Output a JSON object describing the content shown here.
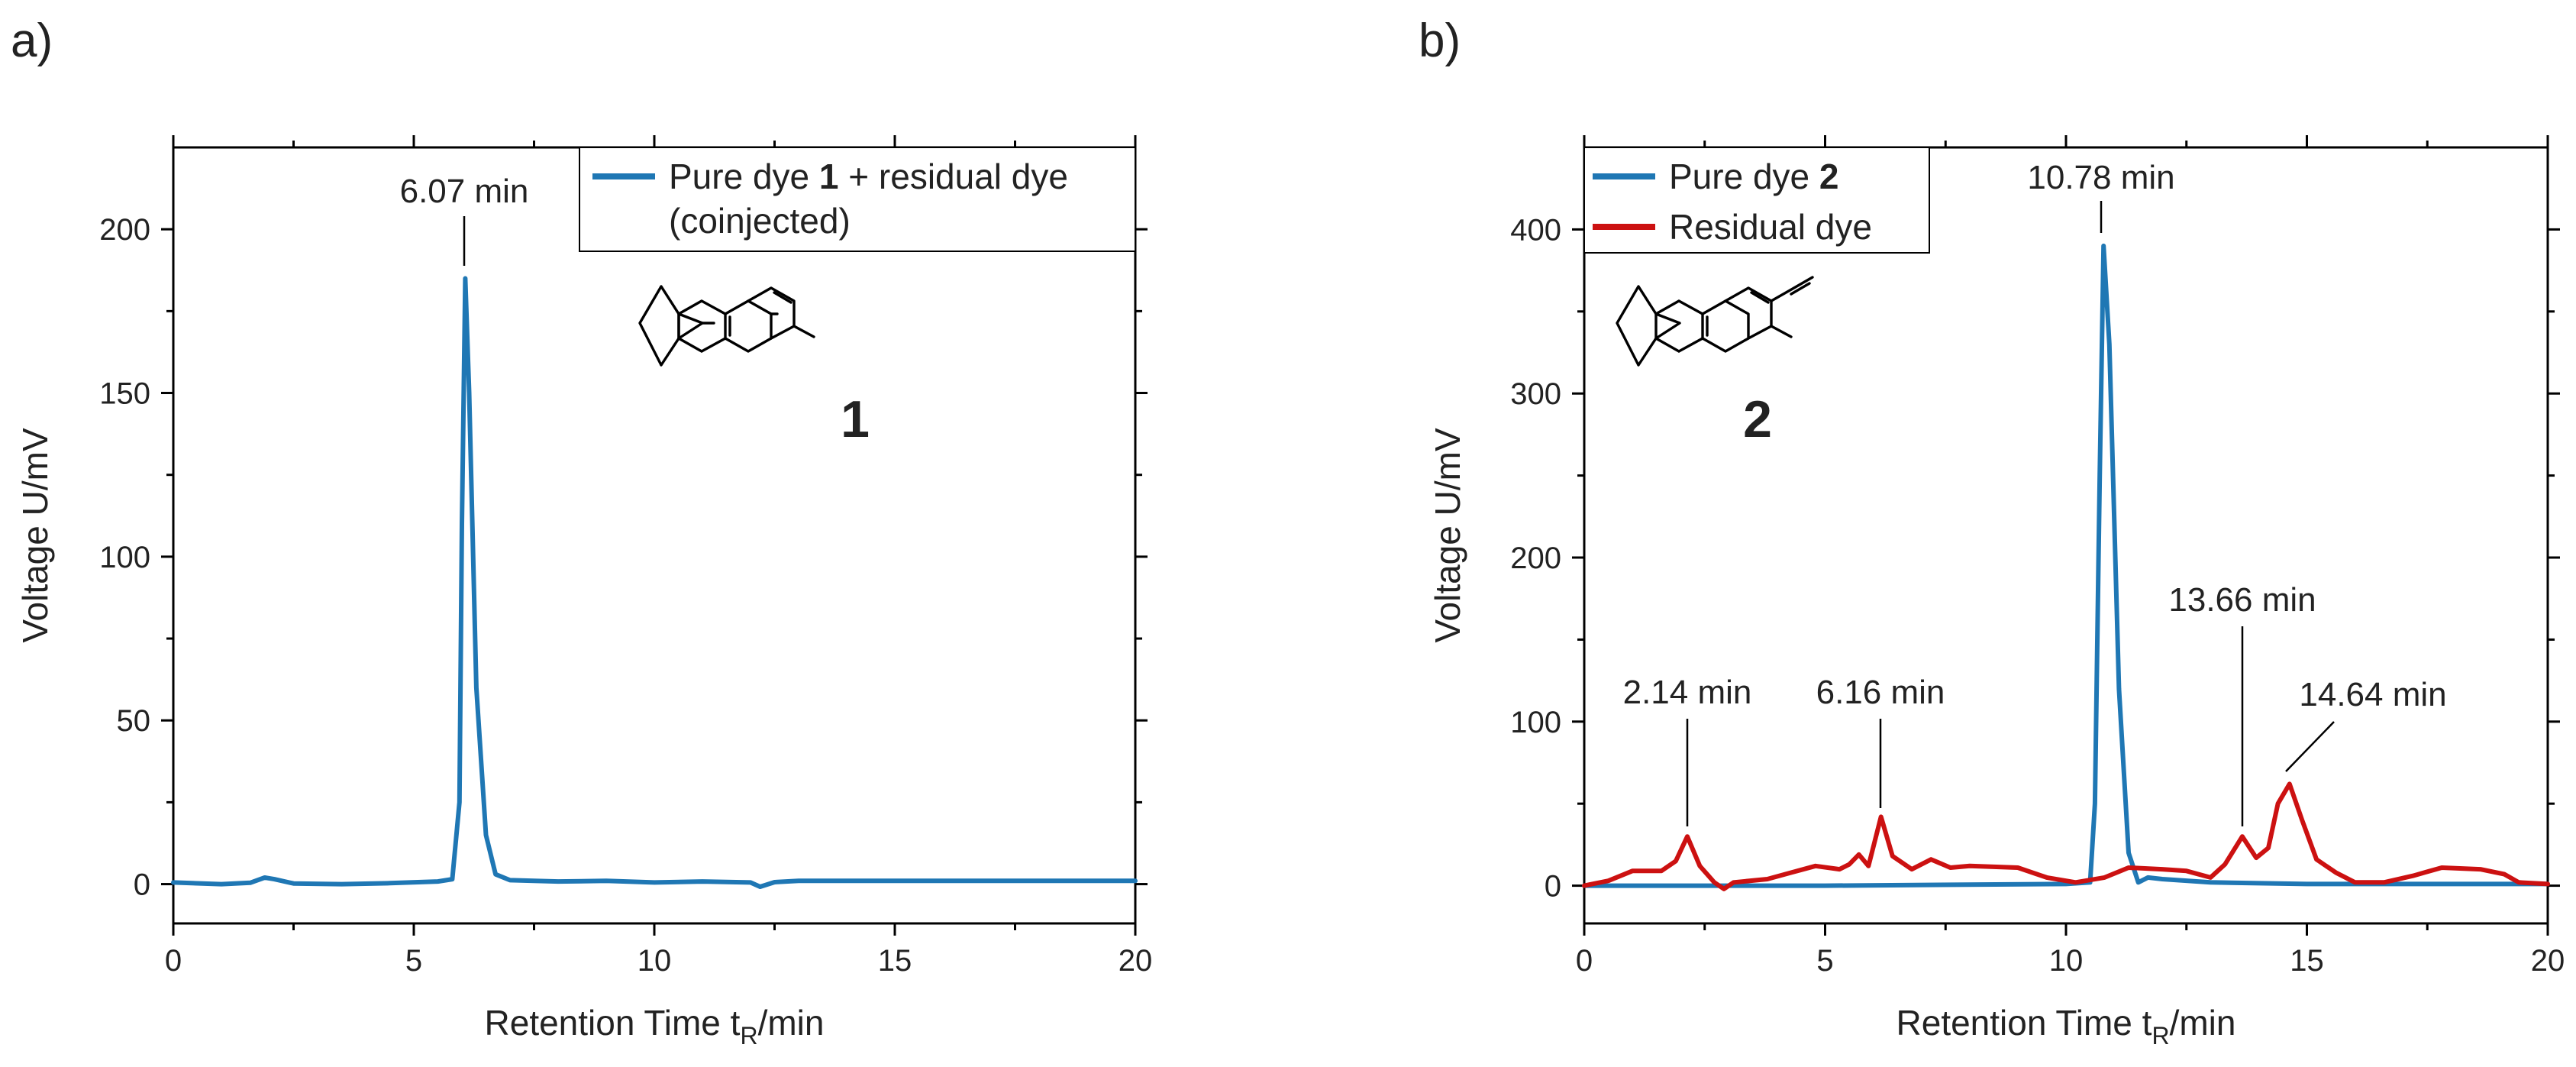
{
  "panels": {
    "a": {
      "label": "a)"
    },
    "b": {
      "label": "b)"
    }
  },
  "colors": {
    "blue": "#1f77b4",
    "red": "#cc1111"
  },
  "chart_data": [
    {
      "id": "a",
      "type": "line",
      "xlabel_main": "Retention Time t",
      "xlabel_sub": "R",
      "xlabel_tail": "/min",
      "ylabel": "Voltage U/mV",
      "xlim": [
        0,
        20
      ],
      "ylim": [
        -12,
        225
      ],
      "xticks": [
        0,
        5,
        10,
        15,
        20
      ],
      "yticks": [
        0,
        50,
        100,
        150,
        200
      ],
      "legend": {
        "position": "top-right",
        "entries": [
          {
            "pre": "Pure dye ",
            "bold": "1",
            "post": " + residual dye",
            "line2": "(coinjected)",
            "color": "#1f77b4"
          }
        ]
      },
      "compound_label": "1",
      "series": [
        {
          "name": "Pure dye 1 + residual dye (coinjected)",
          "color": "#1f77b4",
          "points": [
            [
              0,
              0.5
            ],
            [
              1,
              0
            ],
            [
              1.6,
              0.4
            ],
            [
              1.9,
              2
            ],
            [
              2.1,
              1.5
            ],
            [
              2.5,
              0.2
            ],
            [
              3.5,
              0
            ],
            [
              4.5,
              0.3
            ],
            [
              5.5,
              0.8
            ],
            [
              5.8,
              1.5
            ],
            [
              5.95,
              25
            ],
            [
              6.0,
              110
            ],
            [
              6.07,
              185
            ],
            [
              6.15,
              150
            ],
            [
              6.3,
              60
            ],
            [
              6.5,
              15
            ],
            [
              6.7,
              3
            ],
            [
              7,
              1.2
            ],
            [
              8,
              0.8
            ],
            [
              9,
              1
            ],
            [
              10,
              0.5
            ],
            [
              11,
              0.8
            ],
            [
              12,
              0.5
            ],
            [
              12.2,
              -0.8
            ],
            [
              12.5,
              0.6
            ],
            [
              13,
              1
            ],
            [
              15,
              1
            ],
            [
              17,
              1
            ],
            [
              20,
              1
            ]
          ]
        }
      ],
      "annotations": [
        {
          "text": "6.07 min",
          "x": 6.07,
          "y": 185
        }
      ]
    },
    {
      "id": "b",
      "type": "line",
      "xlabel_main": "Retention Time t",
      "xlabel_sub": "R",
      "xlabel_tail": "/min",
      "ylabel": "Voltage U/mV",
      "xlim": [
        0,
        20
      ],
      "ylim": [
        -23,
        450
      ],
      "xticks": [
        0,
        5,
        10,
        15,
        20
      ],
      "yticks": [
        0,
        100,
        200,
        300,
        400
      ],
      "legend": {
        "position": "top-left",
        "entries": [
          {
            "pre": "Pure dye ",
            "bold": "2",
            "post": "",
            "line2": "",
            "color": "#1f77b4"
          },
          {
            "pre": "Residual dye",
            "bold": "",
            "post": "",
            "line2": "",
            "color": "#cc1111"
          }
        ]
      },
      "compound_label": "2",
      "series": [
        {
          "name": "Pure dye 2",
          "color": "#1f77b4",
          "points": [
            [
              0,
              0
            ],
            [
              5,
              0
            ],
            [
              10,
              1
            ],
            [
              10.5,
              2
            ],
            [
              10.6,
              50
            ],
            [
              10.7,
              250
            ],
            [
              10.78,
              390
            ],
            [
              10.9,
              330
            ],
            [
              11.1,
              120
            ],
            [
              11.3,
              20
            ],
            [
              11.5,
              2
            ],
            [
              11.7,
              5
            ],
            [
              12,
              4
            ],
            [
              13,
              2
            ],
            [
              15,
              1
            ],
            [
              20,
              1
            ]
          ]
        },
        {
          "name": "Residual dye",
          "color": "#cc1111",
          "points": [
            [
              0,
              0
            ],
            [
              0.5,
              3
            ],
            [
              1,
              9
            ],
            [
              1.6,
              9
            ],
            [
              1.9,
              15
            ],
            [
              2.14,
              30
            ],
            [
              2.4,
              12
            ],
            [
              2.7,
              2
            ],
            [
              2.9,
              -2
            ],
            [
              3.1,
              2
            ],
            [
              3.8,
              4
            ],
            [
              4.3,
              8
            ],
            [
              4.8,
              12
            ],
            [
              5.3,
              10
            ],
            [
              5.5,
              13
            ],
            [
              5.7,
              19
            ],
            [
              5.9,
              12
            ],
            [
              6.16,
              42
            ],
            [
              6.4,
              18
            ],
            [
              6.8,
              10
            ],
            [
              7.2,
              16
            ],
            [
              7.6,
              11
            ],
            [
              8,
              12
            ],
            [
              9,
              11
            ],
            [
              9.6,
              5
            ],
            [
              10.2,
              2
            ],
            [
              10.8,
              5
            ],
            [
              11.3,
              11
            ],
            [
              12,
              10
            ],
            [
              12.5,
              9
            ],
            [
              13,
              5
            ],
            [
              13.3,
              13
            ],
            [
              13.66,
              30
            ],
            [
              13.95,
              17
            ],
            [
              14.2,
              23
            ],
            [
              14.4,
              50
            ],
            [
              14.64,
              62
            ],
            [
              14.9,
              40
            ],
            [
              15.2,
              16
            ],
            [
              15.6,
              8
            ],
            [
              16,
              2
            ],
            [
              16.6,
              2
            ],
            [
              17.2,
              6
            ],
            [
              17.8,
              11
            ],
            [
              18.6,
              10
            ],
            [
              19.1,
              7
            ],
            [
              19.4,
              2
            ],
            [
              20,
              1
            ]
          ]
        }
      ],
      "annotations": [
        {
          "text": "10.78 min",
          "x": 10.78,
          "y": 390
        },
        {
          "text": "2.14 min",
          "x": 2.14,
          "y": 30
        },
        {
          "text": "6.16 min",
          "x": 6.16,
          "y": 42
        },
        {
          "text": "13.66 min",
          "x": 13.66,
          "y": 30
        },
        {
          "text": "14.64 min",
          "x": 14.64,
          "y": 62
        }
      ]
    }
  ]
}
